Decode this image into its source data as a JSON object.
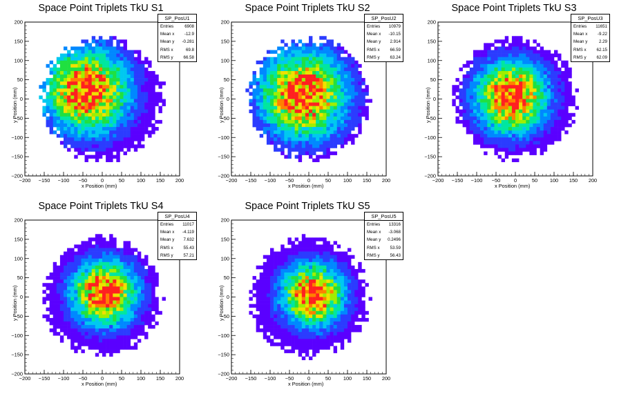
{
  "chart_data": [
    {
      "type": "heatmap",
      "title": "Space Point Triplets TkU S1",
      "xlabel": "x Position (mm)",
      "ylabel": "y Position (mm)",
      "xlim": [
        -200,
        200
      ],
      "ylim": [
        -200,
        200
      ],
      "xticks": [
        "−200",
        "−150",
        "−100",
        "−50",
        "0",
        "50",
        "100",
        "150",
        "200"
      ],
      "yticks": [
        "200",
        "150",
        "100",
        "50",
        "0",
        "−50",
        "−100",
        "−150",
        "−200"
      ],
      "stats": {
        "name": "SP_PosU1",
        "entries": "6908",
        "mean_x": "-12.9",
        "mean_y": "-0.281",
        "rms_x": "69.8",
        "rms_y": "66.58"
      },
      "labels": {
        "entries": "Entries",
        "mean_x": "Mean x",
        "mean_y": "Mean y",
        "rms_x": "RMS x",
        "rms_y": "RMS y"
      },
      "distribution": {
        "center": [
          -40,
          20
        ],
        "sigma": 72,
        "radius": 160,
        "peak_entries_per_bin": 14,
        "seed": 11
      }
    },
    {
      "type": "heatmap",
      "title": "Space Point Triplets TkU S2",
      "xlabel": "x Position (mm)",
      "ylabel": "y Position (mm)",
      "xlim": [
        -200,
        200
      ],
      "ylim": [
        -200,
        200
      ],
      "xticks": [
        "−200",
        "−150",
        "−100",
        "−50",
        "0",
        "50",
        "100",
        "150",
        "200"
      ],
      "yticks": [
        "200",
        "150",
        "100",
        "50",
        "0",
        "−50",
        "−100",
        "−150",
        "−200"
      ],
      "stats": {
        "name": "SP_PosU2",
        "entries": "10979",
        "mean_x": "-10.15",
        "mean_y": "2.914",
        "rms_x": "66.59",
        "rms_y": "63.24"
      },
      "labels": {
        "entries": "Entries",
        "mean_x": "Mean x",
        "mean_y": "Mean y",
        "rms_x": "RMS x",
        "rms_y": "RMS y"
      },
      "distribution": {
        "center": [
          -15,
          10
        ],
        "sigma": 74,
        "radius": 160,
        "peak_entries_per_bin": 16,
        "seed": 23
      }
    },
    {
      "type": "heatmap",
      "title": "Space Point Triplets TkU S3",
      "xlabel": "x Position (mm)",
      "ylabel": "y Position (mm)",
      "xlim": [
        -200,
        200
      ],
      "ylim": [
        -200,
        200
      ],
      "xticks": [
        "−200",
        "−150",
        "−100",
        "−50",
        "0",
        "50",
        "100",
        "150",
        "200"
      ],
      "yticks": [
        "200",
        "150",
        "100",
        "50",
        "0",
        "−50",
        "−100",
        "−150",
        "−200"
      ],
      "stats": {
        "name": "SP_PosU3",
        "entries": "11651",
        "mean_x": "-9.22",
        "mean_y": "2.29",
        "rms_x": "62.15",
        "rms_y": "62.09"
      },
      "labels": {
        "entries": "Entries",
        "mean_x": "Mean x",
        "mean_y": "Mean y",
        "rms_x": "RMS x",
        "rms_y": "RMS y"
      },
      "distribution": {
        "center": [
          -10,
          5
        ],
        "sigma": 62,
        "radius": 160,
        "peak_entries_per_bin": 20,
        "seed": 37
      }
    },
    {
      "type": "heatmap",
      "title": "Space Point Triplets TkU S4",
      "xlabel": "x Position (mm)",
      "ylabel": "y Position (mm)",
      "xlim": [
        -200,
        200
      ],
      "ylim": [
        -200,
        200
      ],
      "xticks": [
        "−200",
        "−150",
        "−100",
        "−50",
        "0",
        "50",
        "100",
        "150",
        "200"
      ],
      "yticks": [
        "200",
        "150",
        "100",
        "50",
        "0",
        "−50",
        "−100",
        "−150",
        "−200"
      ],
      "stats": {
        "name": "SP_PosU4",
        "entries": "11017",
        "mean_x": "-4.119",
        "mean_y": "7.632",
        "rms_x": "55.43",
        "rms_y": "57.21"
      },
      "labels": {
        "entries": "Entries",
        "mean_x": "Mean x",
        "mean_y": "Mean y",
        "rms_x": "RMS x",
        "rms_y": "RMS y"
      },
      "distribution": {
        "center": [
          5,
          10
        ],
        "sigma": 56,
        "radius": 155,
        "peak_entries_per_bin": 22,
        "seed": 51
      }
    },
    {
      "type": "heatmap",
      "title": "Space Point Triplets TkU S5",
      "xlabel": "x Position (mm)",
      "ylabel": "y Position (mm)",
      "xlim": [
        -200,
        200
      ],
      "ylim": [
        -200,
        200
      ],
      "xticks": [
        "−200",
        "−150",
        "−100",
        "−50",
        "0",
        "50",
        "100",
        "150",
        "200"
      ],
      "yticks": [
        "200",
        "150",
        "100",
        "50",
        "0",
        "−50",
        "−100",
        "−150",
        "−200"
      ],
      "stats": {
        "name": "SP_PosU5",
        "entries": "13316",
        "mean_x": "-3.068",
        "mean_y": "0.2496",
        "rms_x": "53.59",
        "rms_y": "56.43"
      },
      "labels": {
        "entries": "Entries",
        "mean_x": "Mean x",
        "mean_y": "Mean y",
        "rms_x": "RMS x",
        "rms_y": "RMS y"
      },
      "distribution": {
        "center": [
          10,
          5
        ],
        "sigma": 54,
        "radius": 155,
        "peak_entries_per_bin": 24,
        "seed": 67
      }
    }
  ],
  "palette": [
    "#5a00ff",
    "#2b3cff",
    "#0088ff",
    "#00c8f0",
    "#00e6a0",
    "#20e040",
    "#a0ee00",
    "#f0e000",
    "#ff8000",
    "#ff2020"
  ]
}
